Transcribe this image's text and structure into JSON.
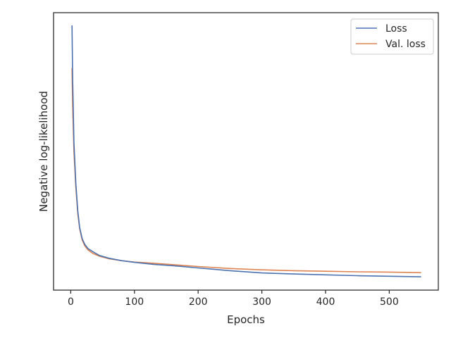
{
  "chart_data": {
    "type": "line",
    "title": "",
    "xlabel": "Epochs",
    "ylabel": "Negative log-likelihood",
    "xlim": [
      -27,
      577
    ],
    "ylim": [
      0,
      100
    ],
    "xticks": [
      0,
      100,
      200,
      300,
      400,
      500
    ],
    "xtick_labels": [
      "0",
      "100",
      "200",
      "300",
      "400",
      "500"
    ],
    "yticks_visible": false,
    "grid": false,
    "legend_position": "top-right",
    "series": [
      {
        "name": "Loss",
        "color": "#4c72b0",
        "x": [
          2,
          3,
          5,
          8,
          11,
          14,
          18,
          22,
          27,
          35,
          45,
          60,
          80,
          100,
          130,
          160,
          200,
          250,
          300,
          350,
          400,
          450,
          500,
          550
        ],
        "y": [
          95.4,
          76.0,
          53.5,
          38.5,
          28.5,
          22.5,
          18.5,
          16.5,
          15.0,
          13.8,
          12.5,
          11.5,
          10.6,
          10.0,
          9.3,
          8.8,
          8.0,
          7.0,
          6.2,
          5.8,
          5.5,
          5.2,
          5.0,
          4.8
        ]
      },
      {
        "name": "Val. loss",
        "color": "#dd8452",
        "x": [
          2,
          3,
          5,
          8,
          11,
          14,
          18,
          22,
          27,
          35,
          45,
          60,
          80,
          100,
          130,
          160,
          200,
          250,
          300,
          350,
          400,
          450,
          500,
          550
        ],
        "y": [
          80.0,
          66.0,
          50.0,
          37.0,
          27.5,
          22.0,
          18.0,
          16.0,
          14.5,
          13.2,
          12.2,
          11.3,
          10.6,
          10.1,
          9.7,
          9.2,
          8.5,
          7.8,
          7.3,
          7.0,
          6.8,
          6.6,
          6.5,
          6.3
        ]
      }
    ]
  }
}
